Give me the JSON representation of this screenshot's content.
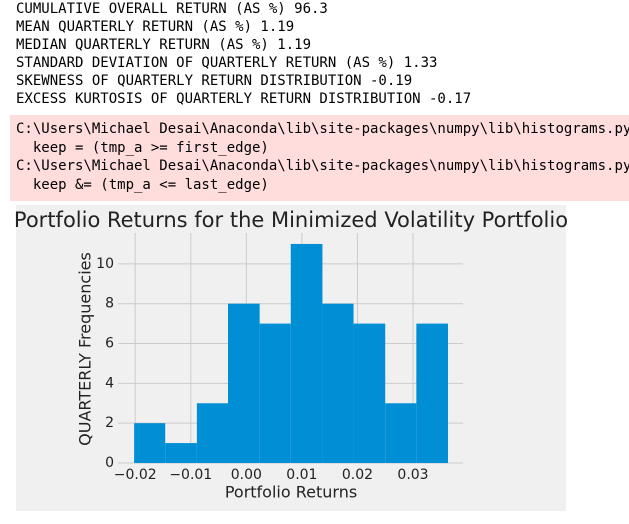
{
  "output_lines": [
    "CUMULATIVE OVERALL RETURN (AS %) 96.3",
    "MEAN QUARTERLY RETURN (AS %) 1.19",
    "MEDIAN QUARTERLY RETURN (AS %) 1.19",
    "STANDARD DEVIATION OF QUARTERLY RETURN (AS %) 1.33",
    "SKEWNESS OF QUARTERLY RETURN DISTRIBUTION -0.19",
    "EXCESS KURTOSIS OF QUARTERLY RETURN DISTRIBUTION -0.17"
  ],
  "warning_lines": [
    "C:\\Users\\Michael Desai\\Anaconda\\lib\\site-packages\\numpy\\lib\\histograms.py",
    "  keep = (tmp_a >= first_edge)",
    "C:\\Users\\Michael Desai\\Anaconda\\lib\\site-packages\\numpy\\lib\\histograms.py",
    "  keep &= (tmp_a <= last_edge)"
  ],
  "chart_data": {
    "type": "histogram",
    "title": "Portfolio Returns for the Minimized Volatility Portfolio",
    "xlabel": "Portfolio Returns",
    "ylabel": "QUARTERLY Frequencies",
    "bins": [
      -0.0202,
      -0.0146,
      -0.0089,
      -0.0033,
      0.0024,
      0.008,
      0.0137,
      0.0193,
      0.025,
      0.0306,
      0.0363
    ],
    "values": [
      2,
      1,
      3,
      8,
      7,
      11,
      8,
      7,
      3,
      7
    ],
    "color": "#008fd5",
    "xlim": [
      -0.0231,
      0.039
    ],
    "ylim": [
      0,
      11.55
    ],
    "xticks": [
      {
        "value": -0.02,
        "label": "−0.02"
      },
      {
        "value": -0.01,
        "label": "−0.01"
      },
      {
        "value": 0,
        "label": "0.00"
      },
      {
        "value": 0.01,
        "label": "0.01"
      },
      {
        "value": 0.02,
        "label": "0.02"
      },
      {
        "value": 0.03,
        "label": "0.03"
      }
    ],
    "yticks": [
      0,
      2,
      4,
      6,
      8,
      10
    ],
    "grid": true
  }
}
